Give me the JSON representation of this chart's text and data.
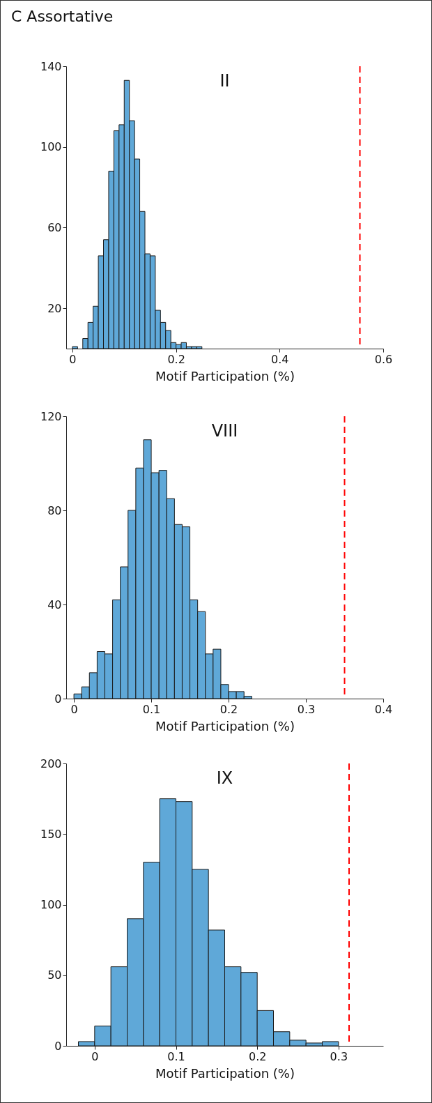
{
  "chart_data": [
    {
      "type": "histogram",
      "title": "II",
      "xlabel": "Motif Participation (%)",
      "annotations": [
        "C Assortative"
      ],
      "color": "#5fa8d8",
      "bins": [
        0,
        0.01,
        0.02,
        0.03,
        0.04,
        0.05,
        0.06,
        0.07,
        0.08,
        0.09,
        0.1,
        0.11,
        0.12,
        0.13,
        0.14,
        0.15,
        0.16,
        0.17,
        0.18,
        0.19,
        0.2,
        0.21,
        0.22,
        0.23,
        0.24,
        0.25
      ],
      "values": [
        1,
        0,
        5,
        13,
        21,
        46,
        54,
        88,
        108,
        111,
        133,
        113,
        94,
        68,
        47,
        46,
        19,
        13,
        9,
        3,
        2,
        3,
        1,
        1,
        1
      ],
      "xlim": [
        -0.012,
        0.6
      ],
      "xticks": [
        0,
        0.2,
        0.4,
        0.6
      ],
      "ylim": [
        0,
        140
      ],
      "yticks": [
        20,
        60,
        100,
        140
      ],
      "ref_lines": [
        {
          "axis": "x",
          "value": 0.555,
          "color": "#ff0000",
          "line_style": "dashed"
        }
      ]
    },
    {
      "type": "histogram",
      "title": "VIII",
      "xlabel": "Motif Participation (%)",
      "color": "#5fa8d8",
      "bins": [
        0,
        0.01,
        0.02,
        0.03,
        0.04,
        0.05,
        0.06,
        0.07,
        0.08,
        0.09,
        0.1,
        0.11,
        0.12,
        0.13,
        0.14,
        0.15,
        0.16,
        0.17,
        0.18,
        0.19,
        0.2,
        0.21,
        0.22,
        0.23
      ],
      "values": [
        2,
        5,
        11,
        20,
        19,
        42,
        56,
        80,
        98,
        110,
        96,
        97,
        85,
        74,
        73,
        42,
        37,
        19,
        21,
        6,
        3,
        3,
        1
      ],
      "xlim": [
        -0.01,
        0.4
      ],
      "xticks": [
        0,
        0.1,
        0.2,
        0.3,
        0.4
      ],
      "ylim": [
        0,
        120
      ],
      "yticks": [
        0,
        40,
        80,
        120
      ],
      "ref_lines": [
        {
          "axis": "x",
          "value": 0.35,
          "color": "#ff0000",
          "line_style": "dashed"
        }
      ]
    },
    {
      "type": "histogram",
      "title": "IX",
      "xlabel": "Motif Participation (%)",
      "color": "#5fa8d8",
      "bins": [
        -0.02,
        0,
        0.02,
        0.04,
        0.06,
        0.08,
        0.1,
        0.12,
        0.14,
        0.16,
        0.18,
        0.2,
        0.22,
        0.24,
        0.26,
        0.28,
        0.3
      ],
      "values": [
        3,
        14,
        56,
        90,
        130,
        175,
        173,
        125,
        82,
        56,
        52,
        25,
        10,
        4,
        2,
        3
      ],
      "xlim": [
        -0.035,
        0.355
      ],
      "xticks": [
        0,
        0.1,
        0.2,
        0.3
      ],
      "ylim": [
        0,
        200
      ],
      "yticks": [
        0,
        50,
        100,
        150,
        200
      ],
      "ref_lines": [
        {
          "axis": "x",
          "value": 0.313,
          "color": "#ff0000",
          "line_style": "dashed"
        }
      ]
    }
  ]
}
